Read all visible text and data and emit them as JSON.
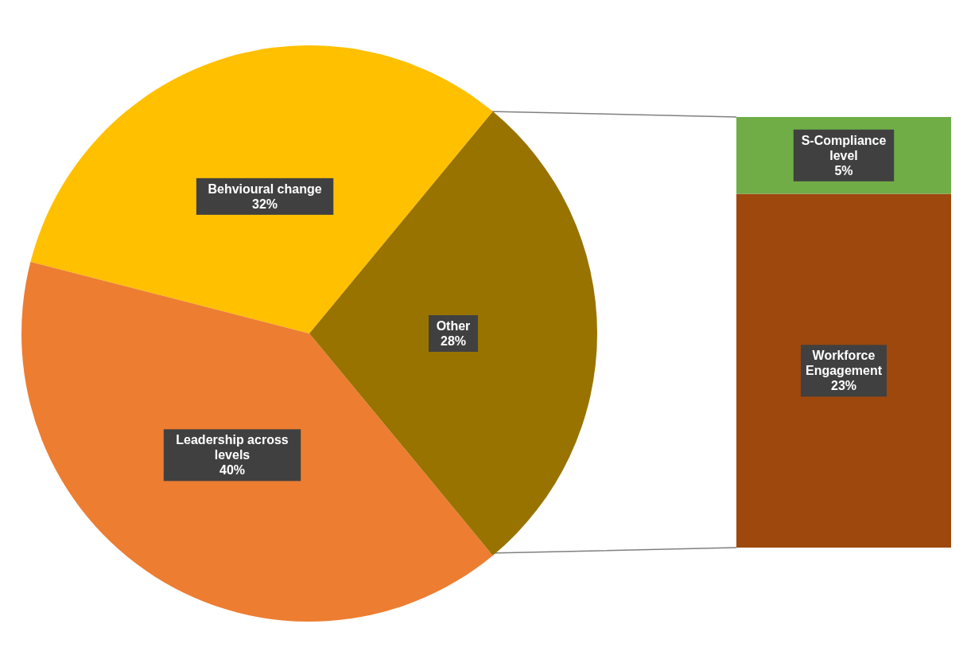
{
  "chart_data": [
    {
      "type": "pie",
      "categories": [
        "Behvioural change",
        "Leadership across levels",
        "Other"
      ],
      "values": [
        32,
        40,
        28
      ],
      "colors": [
        "#ffc000",
        "#ed7d31",
        "#997300"
      ],
      "value_labels": [
        "32%",
        "40%",
        "28%"
      ]
    },
    {
      "type": "bar",
      "stacked": true,
      "categories": [
        null
      ],
      "series": [
        {
          "name": "Workforce Engagement",
          "color": "#9e480e",
          "values": [
            23
          ],
          "value_labels": [
            "23%"
          ]
        },
        {
          "name": "S-Compliance level",
          "color": "#70ad47",
          "values": [
            5
          ],
          "value_labels": [
            "5%"
          ]
        }
      ]
    }
  ]
}
